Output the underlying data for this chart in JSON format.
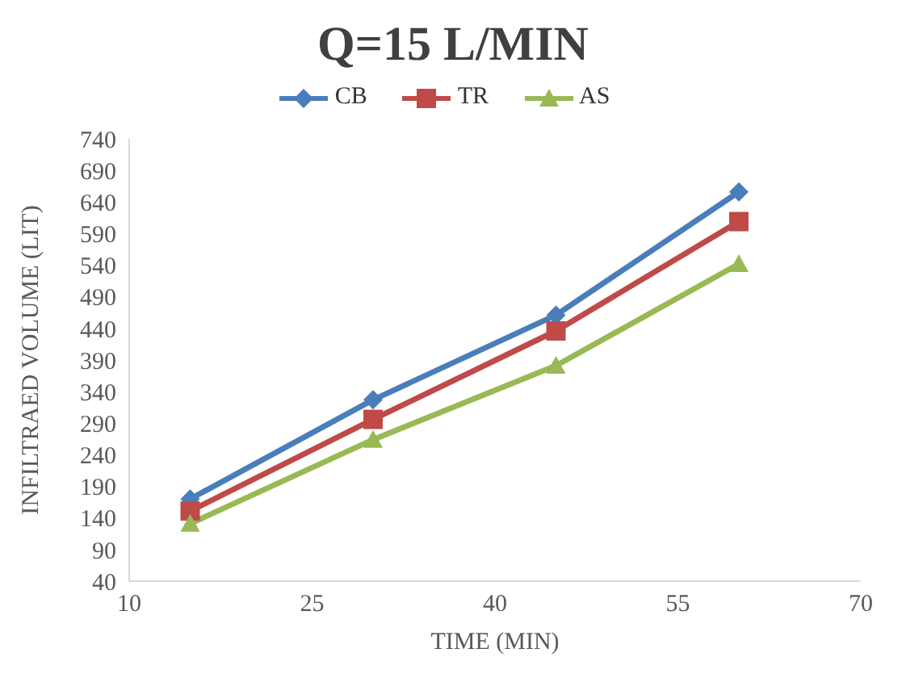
{
  "chart_data": {
    "type": "line",
    "title": "Q=15 L/MIN",
    "xlabel": "TIME (MIN)",
    "ylabel": "INFILTRAED VOLUME (LIT)",
    "x": [
      15,
      30,
      45,
      60
    ],
    "series": [
      {
        "name": "CB",
        "color": "#4a7ebb",
        "values": [
          170,
          327,
          461,
          656
        ],
        "marker": "diamond"
      },
      {
        "name": "TR",
        "color": "#be4b48",
        "values": [
          151,
          296,
          436,
          609
        ],
        "marker": "square"
      },
      {
        "name": "AS",
        "color": "#98b954",
        "values": [
          131,
          264,
          381,
          542
        ],
        "marker": "triangle"
      }
    ],
    "xlim": [
      10,
      70
    ],
    "xticks": [
      10,
      25,
      40,
      55,
      70
    ],
    "ylim": [
      40,
      740
    ],
    "yticks": [
      40,
      90,
      140,
      190,
      240,
      290,
      340,
      390,
      440,
      490,
      540,
      590,
      640,
      690,
      740
    ],
    "legend": "top",
    "line_style": "solid"
  }
}
